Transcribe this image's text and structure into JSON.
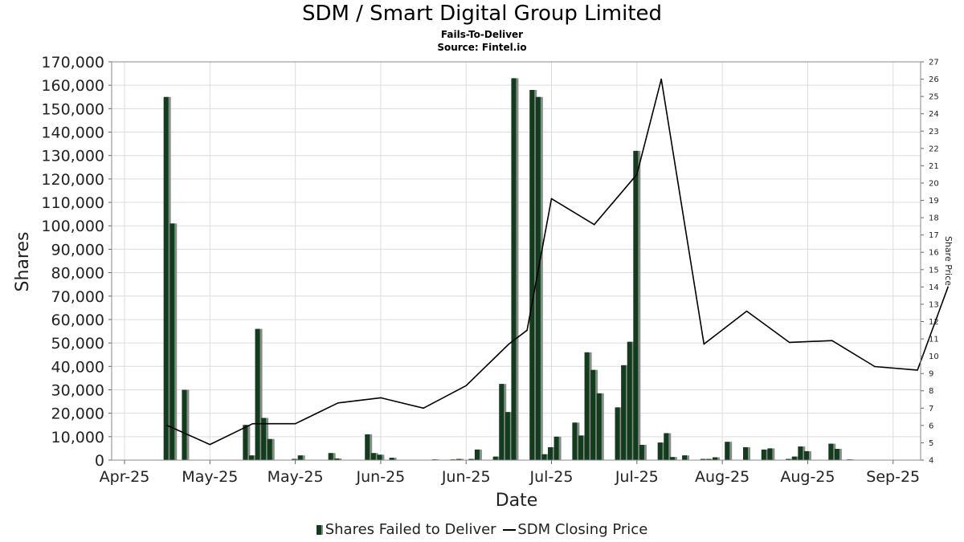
{
  "chart_data": {
    "type": "bar",
    "title": "SDM / Smart Digital Group Limited",
    "subtitle": "Fails-To-Deliver",
    "source": "Source: Fintel.io",
    "xlabel": "Date",
    "ylabel": "Shares",
    "y2label": "Share Price",
    "ylim": [
      0,
      170000
    ],
    "y2lim": [
      4,
      27
    ],
    "yticks": [
      "0",
      "10,000",
      "20,000",
      "30,000",
      "40,000",
      "50,000",
      "60,000",
      "70,000",
      "80,000",
      "90,000",
      "100,000",
      "110,000",
      "120,000",
      "130,000",
      "140,000",
      "150,000",
      "160,000",
      "170,000"
    ],
    "y2ticks": [
      "4",
      "5",
      "6",
      "7",
      "8",
      "9",
      "10",
      "11",
      "12",
      "13",
      "14",
      "15",
      "16",
      "17",
      "18",
      "19",
      "20",
      "21",
      "22",
      "23",
      "24",
      "25",
      "26",
      "27"
    ],
    "xticks": [
      {
        "label": "Apr-25",
        "date": "2025-04-26"
      },
      {
        "label": "May-25",
        "date": "2025-05-10"
      },
      {
        "label": "May-25",
        "date": "2025-05-24"
      },
      {
        "label": "Jun-25",
        "date": "2025-06-07"
      },
      {
        "label": "Jun-25",
        "date": "2025-06-21"
      },
      {
        "label": "Jul-25",
        "date": "2025-07-05"
      },
      {
        "label": "Jul-25",
        "date": "2025-07-19"
      },
      {
        "label": "Aug-25",
        "date": "2025-08-02"
      },
      {
        "label": "Aug-25",
        "date": "2025-08-16"
      },
      {
        "label": "Sep-25",
        "date": "2025-08-30"
      }
    ],
    "grid": true,
    "legend_position": "bottom",
    "series": [
      {
        "name": "Shares Failed to Deliver",
        "type": "bar",
        "color": "#123d1c",
        "shadow_color": "#8a8a8a",
        "points": [
          {
            "date": "2025-05-03",
            "value": 155000
          },
          {
            "date": "2025-05-04",
            "value": 101000
          },
          {
            "date": "2025-05-06",
            "value": 30000
          },
          {
            "date": "2025-05-16",
            "value": 15000
          },
          {
            "date": "2025-05-17",
            "value": 2000
          },
          {
            "date": "2025-05-18",
            "value": 56000
          },
          {
            "date": "2025-05-19",
            "value": 18000
          },
          {
            "date": "2025-05-20",
            "value": 9000
          },
          {
            "date": "2025-05-24",
            "value": 500
          },
          {
            "date": "2025-05-25",
            "value": 2000
          },
          {
            "date": "2025-05-30",
            "value": 3000
          },
          {
            "date": "2025-05-31",
            "value": 700
          },
          {
            "date": "2025-06-05",
            "value": 11000
          },
          {
            "date": "2025-06-06",
            "value": 3000
          },
          {
            "date": "2025-06-07",
            "value": 2300
          },
          {
            "date": "2025-06-09",
            "value": 1000
          },
          {
            "date": "2025-06-16",
            "value": 300
          },
          {
            "date": "2025-06-19",
            "value": 300
          },
          {
            "date": "2025-06-20",
            "value": 500
          },
          {
            "date": "2025-06-22",
            "value": 500
          },
          {
            "date": "2025-06-23",
            "value": 4500
          },
          {
            "date": "2025-06-26",
            "value": 1500
          },
          {
            "date": "2025-06-27",
            "value": 32500
          },
          {
            "date": "2025-06-28",
            "value": 20500
          },
          {
            "date": "2025-06-29",
            "value": 163000
          },
          {
            "date": "2025-07-02",
            "value": 158000
          },
          {
            "date": "2025-07-03",
            "value": 155000
          },
          {
            "date": "2025-07-04",
            "value": 2500
          },
          {
            "date": "2025-07-05",
            "value": 5500
          },
          {
            "date": "2025-07-06",
            "value": 10000
          },
          {
            "date": "2025-07-09",
            "value": 16000
          },
          {
            "date": "2025-07-10",
            "value": 10500
          },
          {
            "date": "2025-07-11",
            "value": 46000
          },
          {
            "date": "2025-07-12",
            "value": 38500
          },
          {
            "date": "2025-07-13",
            "value": 28500
          },
          {
            "date": "2025-07-16",
            "value": 22500
          },
          {
            "date": "2025-07-17",
            "value": 40500
          },
          {
            "date": "2025-07-18",
            "value": 50500
          },
          {
            "date": "2025-07-19",
            "value": 132000
          },
          {
            "date": "2025-07-20",
            "value": 6500
          },
          {
            "date": "2025-07-23",
            "value": 7500
          },
          {
            "date": "2025-07-24",
            "value": 11500
          },
          {
            "date": "2025-07-25",
            "value": 1300
          },
          {
            "date": "2025-07-27",
            "value": 2000
          },
          {
            "date": "2025-07-30",
            "value": 500
          },
          {
            "date": "2025-07-31",
            "value": 500
          },
          {
            "date": "2025-08-01",
            "value": 1200
          },
          {
            "date": "2025-08-03",
            "value": 7800
          },
          {
            "date": "2025-08-06",
            "value": 5500
          },
          {
            "date": "2025-08-09",
            "value": 4500
          },
          {
            "date": "2025-08-10",
            "value": 5000
          },
          {
            "date": "2025-08-13",
            "value": 500
          },
          {
            "date": "2025-08-14",
            "value": 1500
          },
          {
            "date": "2025-08-15",
            "value": 5800
          },
          {
            "date": "2025-08-16",
            "value": 3800
          },
          {
            "date": "2025-08-20",
            "value": 7000
          },
          {
            "date": "2025-08-21",
            "value": 4800
          },
          {
            "date": "2025-08-23",
            "value": 300
          }
        ]
      },
      {
        "name": "SDM Closing Price",
        "type": "line",
        "axis": "right",
        "color": "#000000",
        "points": [
          {
            "date": "2025-05-03",
            "value": 6.0
          },
          {
            "date": "2025-05-10",
            "value": 4.9
          },
          {
            "date": "2025-05-17",
            "value": 6.1
          },
          {
            "date": "2025-05-24",
            "value": 6.1
          },
          {
            "date": "2025-05-31",
            "value": 7.3
          },
          {
            "date": "2025-06-07",
            "value": 7.6
          },
          {
            "date": "2025-06-14",
            "value": 7.0
          },
          {
            "date": "2025-06-21",
            "value": 8.3
          },
          {
            "date": "2025-06-28",
            "value": 10.7
          },
          {
            "date": "2025-07-01",
            "value": 11.5
          },
          {
            "date": "2025-07-05",
            "value": 19.1
          },
          {
            "date": "2025-07-12",
            "value": 17.6
          },
          {
            "date": "2025-07-19",
            "value": 20.5
          },
          {
            "date": "2025-07-23",
            "value": 26.0
          },
          {
            "date": "2025-07-30",
            "value": 10.7
          },
          {
            "date": "2025-08-06",
            "value": 12.6
          },
          {
            "date": "2025-08-13",
            "value": 10.8
          },
          {
            "date": "2025-08-20",
            "value": 10.9
          },
          {
            "date": "2025-08-27",
            "value": 9.4
          },
          {
            "date": "2025-09-03",
            "value": 9.2
          },
          {
            "date": "2025-09-08",
            "value": 14.0
          }
        ]
      }
    ]
  }
}
